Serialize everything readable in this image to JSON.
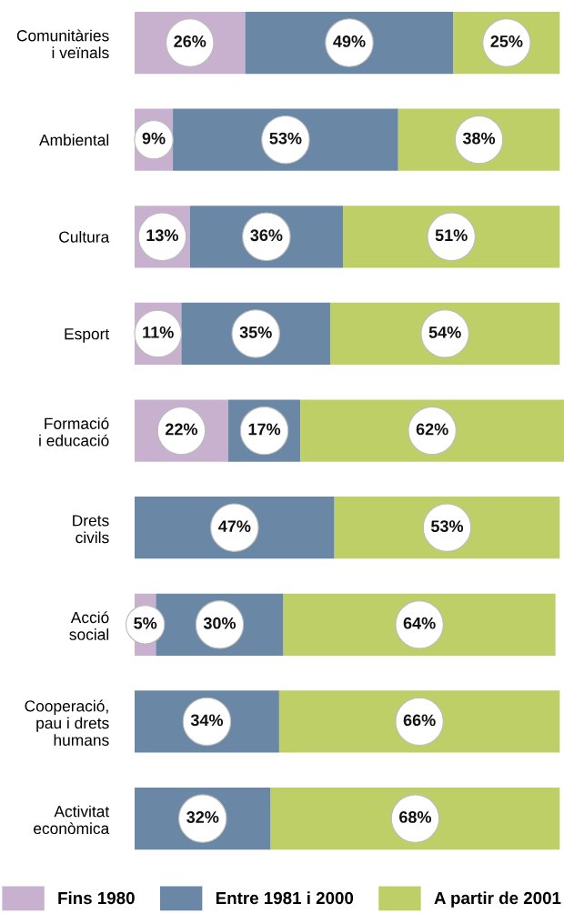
{
  "chart_data": {
    "type": "bar",
    "orientation": "horizontal",
    "stacked": true,
    "categories": [
      "Comunitàries\ni veïnals",
      "Ambiental",
      "Cultura",
      "Esport",
      "Formació\ni educació",
      "Drets\ncivils",
      "Acció\nsocial",
      "Cooperació,\npau i drets\nhumans",
      "Activitat\neconòmica"
    ],
    "series": [
      {
        "name": "Fins 1980",
        "color": "#c8b1cf",
        "values": [
          26,
          9,
          13,
          11,
          22,
          null,
          5,
          null,
          null
        ],
        "value_labels": [
          "26%",
          "9%",
          "13%",
          "11%",
          "22%",
          null,
          "5%",
          null,
          null
        ]
      },
      {
        "name": "Entre 1981 i 2000",
        "color": "#6a88a6",
        "values": [
          49,
          53,
          36,
          35,
          17,
          47,
          30,
          34,
          32
        ],
        "value_labels": [
          "49%",
          "53%",
          "36%",
          "35%",
          "17%",
          "47%",
          "30%",
          "34%",
          "32%"
        ]
      },
      {
        "name": "A partir de 2001",
        "color": "#bfcf67",
        "values": [
          25,
          38,
          51,
          54,
          62,
          53,
          64,
          66,
          68
        ],
        "value_labels": [
          "25%",
          "38%",
          "51%",
          "54%",
          "62%",
          "53%",
          "64%",
          "66%",
          "68%"
        ]
      }
    ],
    "tick_labels": "y",
    "legend": "bottom"
  }
}
